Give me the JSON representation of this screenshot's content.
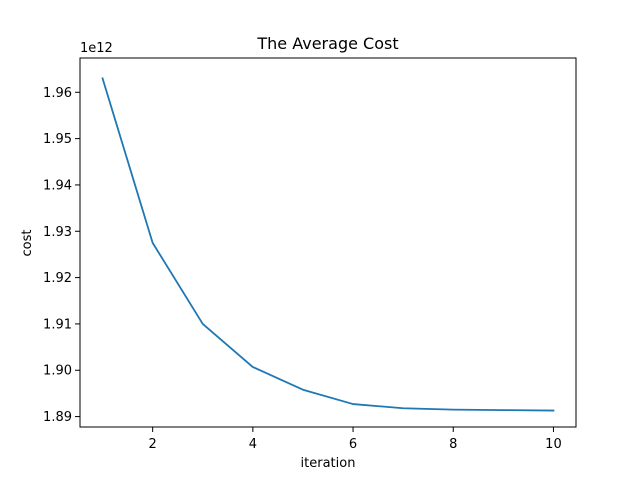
{
  "chart_data": {
    "type": "line",
    "title": "The Average Cost",
    "xlabel": "iteration",
    "ylabel": "cost",
    "y_offset_label": "1e12",
    "xlim": [
      0.55,
      10.45
    ],
    "ylim": [
      1.88775,
      1.9674
    ],
    "x_ticks": [
      2,
      4,
      6,
      8,
      10
    ],
    "x_tick_labels": [
      "2",
      "4",
      "6",
      "8",
      "10"
    ],
    "y_ticks": [
      1.89,
      1.9,
      1.91,
      1.92,
      1.93,
      1.94,
      1.95,
      1.96
    ],
    "y_tick_labels": [
      "1.89",
      "1.90",
      "1.91",
      "1.92",
      "1.93",
      "1.94",
      "1.95",
      "1.96"
    ],
    "grid": false,
    "series": [
      {
        "color": "#1f77b4",
        "x": [
          1,
          2,
          3,
          4,
          5,
          6,
          7,
          8,
          9,
          10
        ],
        "y": [
          1.963,
          1.9275,
          1.91,
          1.9007,
          1.8958,
          1.8927,
          1.8918,
          1.8915,
          1.8914,
          1.8913
        ]
      }
    ]
  }
}
